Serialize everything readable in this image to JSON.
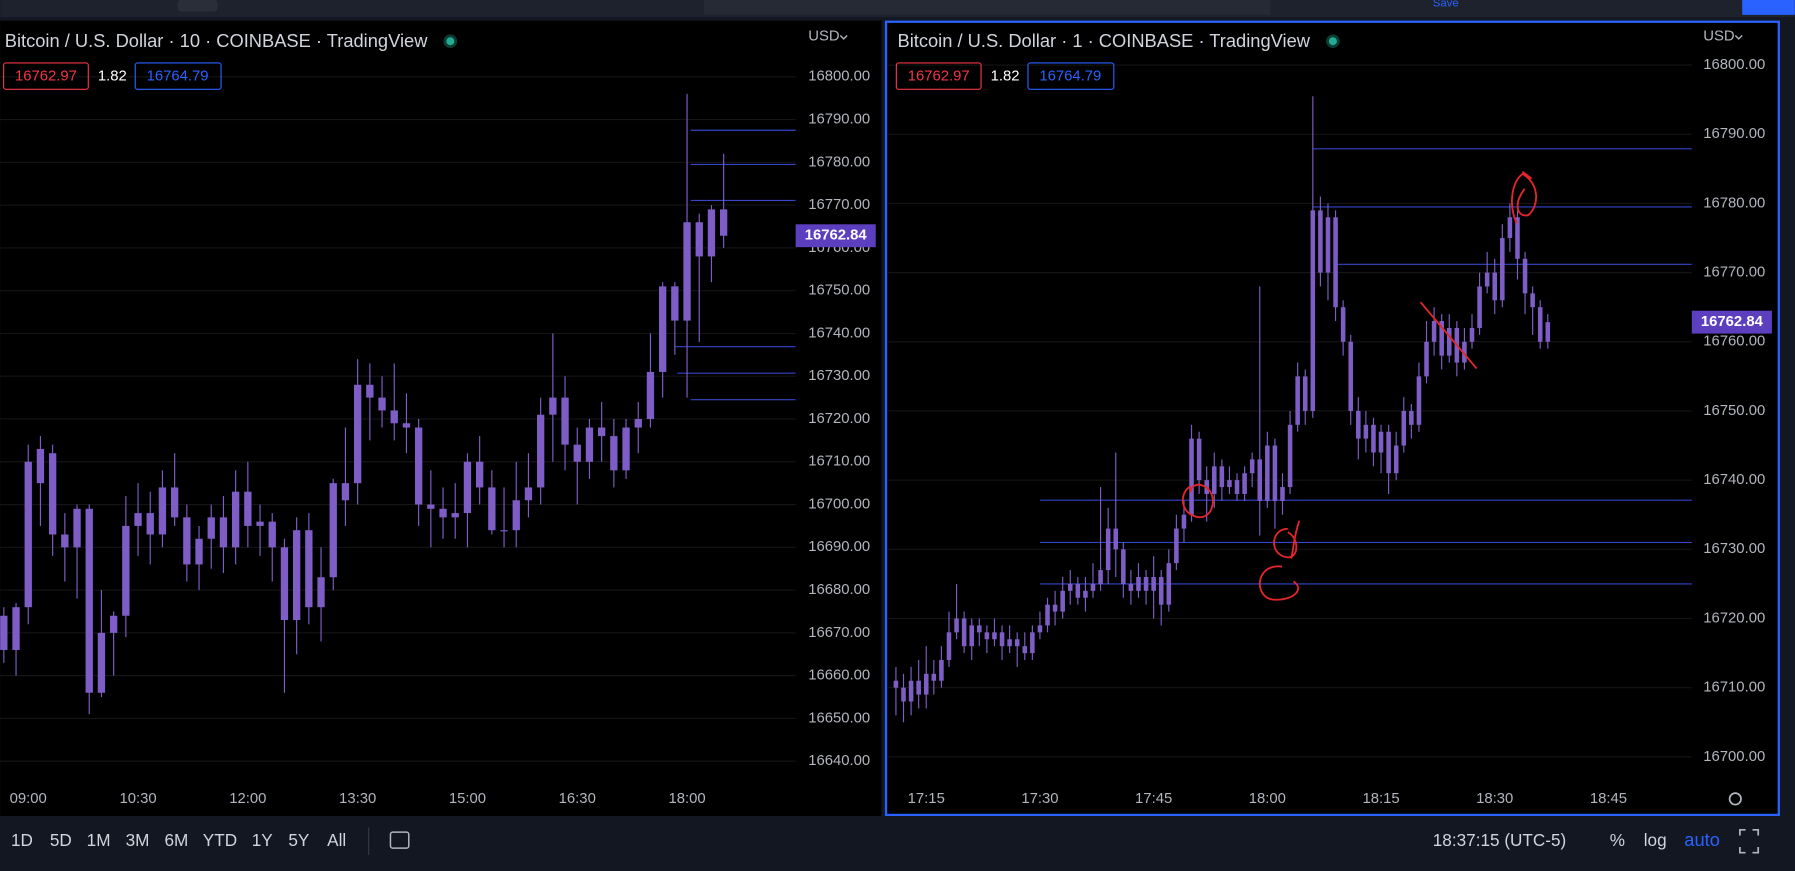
{
  "toolbar": {
    "save": "Save"
  },
  "chart_data": [
    {
      "type": "candlestick",
      "title": "Bitcoin / U.S. Dollar · 10 · COINBASE · TradingView",
      "currency": "USD",
      "bid": 16762.97,
      "spread": 1.82,
      "ask": 16764.79,
      "last_price": 16762.84,
      "color": "#7e5ec6",
      "level_color": "#3346c9",
      "grid": true,
      "x": [
        "08:40",
        "08:50",
        "09:00",
        "09:10",
        "09:20",
        "09:30",
        "09:40",
        "09:50",
        "10:00",
        "10:10",
        "10:20",
        "10:30",
        "10:40",
        "10:50",
        "11:00",
        "11:10",
        "11:20",
        "11:30",
        "11:40",
        "11:50",
        "12:00",
        "12:10",
        "12:20",
        "12:30",
        "12:40",
        "12:50",
        "13:00",
        "13:10",
        "13:20",
        "13:30",
        "13:40",
        "13:50",
        "14:00",
        "14:10",
        "14:20",
        "14:30",
        "14:40",
        "14:50",
        "15:00",
        "15:10",
        "15:20",
        "15:30",
        "15:40",
        "15:50",
        "16:00",
        "16:10",
        "16:20",
        "16:30",
        "16:40",
        "16:50",
        "17:00",
        "17:10",
        "17:20",
        "17:30",
        "17:40",
        "17:50",
        "18:00",
        "18:10",
        "18:20",
        "18:30"
      ],
      "open": [
        16674,
        16666,
        16676,
        16705,
        16712,
        16693,
        16690,
        16699,
        16656,
        16670,
        16674,
        16695,
        16698,
        16693,
        16704,
        16697,
        16686,
        16692,
        16697,
        16690,
        16703,
        16695,
        16696,
        16690,
        16673,
        16694,
        16676,
        16683,
        16701,
        16705,
        16728,
        16725,
        16722,
        16719,
        16718,
        16700,
        16699,
        16697,
        16698,
        16710,
        16704,
        16694,
        16694,
        16701,
        16704,
        16721,
        16725,
        16714,
        16710,
        16718,
        16716,
        16708,
        16718,
        16720,
        16731,
        16751,
        16743,
        16766,
        16758,
        16769
      ],
      "high": [
        16676,
        16677,
        16714,
        16716,
        16714,
        16698,
        16700,
        16700,
        16680,
        16675,
        16702,
        16705,
        16703,
        16708,
        16712,
        16700,
        16695,
        16700,
        16702,
        16708,
        16710,
        16700,
        16698,
        16692,
        16697,
        16698,
        16690,
        16706,
        16718,
        16734,
        16733,
        16730,
        16733,
        16726,
        16720,
        16708,
        16704,
        16705,
        16712,
        16716,
        16708,
        16704,
        16710,
        16712,
        16725,
        16740,
        16730,
        16718,
        16720,
        16724,
        16720,
        16720,
        16724,
        16740,
        16752,
        16752,
        16796,
        16768,
        16770,
        16782
      ],
      "low": [
        16663,
        16660,
        16672,
        16695,
        16688,
        16682,
        16678,
        16651,
        16655,
        16660,
        16669,
        16688,
        16686,
        16690,
        16695,
        16682,
        16680,
        16685,
        16684,
        16686,
        16690,
        16688,
        16682,
        16656,
        16665,
        16672,
        16668,
        16680,
        16695,
        16700,
        16715,
        16718,
        16715,
        16712,
        16695,
        16690,
        16692,
        16692,
        16690,
        16700,
        16693,
        16690,
        16690,
        16697,
        16700,
        16710,
        16708,
        16700,
        16706,
        16710,
        16704,
        16706,
        16712,
        16718,
        16725,
        16735,
        16725,
        16738,
        16752,
        16760
      ],
      "close": [
        16666,
        16676,
        16710,
        16713,
        16693,
        16690,
        16699,
        16656,
        16670,
        16674,
        16695,
        16698,
        16693,
        16704,
        16697,
        16686,
        16692,
        16697,
        16690,
        16703,
        16695,
        16696,
        16690,
        16673,
        16694,
        16676,
        16683,
        16705,
        16705,
        16728,
        16725,
        16722,
        16719,
        16718,
        16700,
        16699,
        16697,
        16698,
        16710,
        16704,
        16694,
        16694,
        16701,
        16704,
        16721,
        16725,
        16714,
        16710,
        16718,
        16716,
        16708,
        16718,
        16720,
        16731,
        16751,
        16743,
        16766,
        16758,
        16769,
        16762.84
      ],
      "xlim": [
        "08:37",
        "19:29"
      ],
      "xticks": [
        "09:00",
        "10:30",
        "12:00",
        "13:30",
        "15:00",
        "16:30",
        "18:00"
      ],
      "ylim": [
        16636,
        16812.6
      ],
      "yticks": [
        {
          "value": 16640,
          "label": "16640.00"
        },
        {
          "value": 16650,
          "label": "16650.00"
        },
        {
          "value": 16660,
          "label": "16660.00"
        },
        {
          "value": 16670,
          "label": "16670.00"
        },
        {
          "value": 16680,
          "label": "16680.00"
        },
        {
          "value": 16690,
          "label": "16690.00"
        },
        {
          "value": 16700,
          "label": "16700.00"
        },
        {
          "value": 16710,
          "label": "16710.00"
        },
        {
          "value": 16720,
          "label": "16720.00"
        },
        {
          "value": 16730,
          "label": "16730.00"
        },
        {
          "value": 16740,
          "label": "16740.00"
        },
        {
          "value": 16750,
          "label": "16750.00"
        },
        {
          "value": 16760,
          "label": "16760.00"
        },
        {
          "value": 16770,
          "label": "16770.00"
        },
        {
          "value": 16780,
          "label": "16780.00"
        },
        {
          "value": 16790,
          "label": "16790.00"
        },
        {
          "value": 16800,
          "label": "16800.00"
        }
      ],
      "levels": [
        {
          "price": 16787.5,
          "from": "18:03"
        },
        {
          "price": 16779.5,
          "from": "18:03"
        },
        {
          "price": 16771.1,
          "from": "18:03"
        },
        {
          "price": 16736.9,
          "from": "17:50"
        },
        {
          "price": 16730.7,
          "from": "17:52"
        },
        {
          "price": 16724.5,
          "from": "18:03"
        }
      ]
    },
    {
      "type": "candlestick",
      "title": "Bitcoin / U.S. Dollar · 1 · COINBASE · TradingView",
      "currency": "USD",
      "bid": 16762.97,
      "spread": 1.82,
      "ask": 16764.79,
      "last_price": 16762.84,
      "color": "#7e5ec6",
      "level_color": "#3346c9",
      "grid": true,
      "x": [
        "17:11",
        "17:12",
        "17:13",
        "17:14",
        "17:15",
        "17:16",
        "17:17",
        "17:18",
        "17:19",
        "17:20",
        "17:21",
        "17:22",
        "17:23",
        "17:24",
        "17:25",
        "17:26",
        "17:27",
        "17:28",
        "17:29",
        "17:30",
        "17:31",
        "17:32",
        "17:33",
        "17:34",
        "17:35",
        "17:36",
        "17:37",
        "17:38",
        "17:39",
        "17:40",
        "17:41",
        "17:42",
        "17:43",
        "17:44",
        "17:45",
        "17:46",
        "17:47",
        "17:48",
        "17:49",
        "17:50",
        "17:51",
        "17:52",
        "17:53",
        "17:54",
        "17:55",
        "17:56",
        "17:57",
        "17:58",
        "17:59",
        "18:00",
        "18:01",
        "18:02",
        "18:03",
        "18:04",
        "18:05",
        "18:06",
        "18:07",
        "18:08",
        "18:09",
        "18:10",
        "18:11",
        "18:12",
        "18:13",
        "18:14",
        "18:15",
        "18:16",
        "18:17",
        "18:18",
        "18:19",
        "18:20",
        "18:21",
        "18:22",
        "18:23",
        "18:24",
        "18:25",
        "18:26",
        "18:27",
        "18:28",
        "18:29",
        "18:30",
        "18:31",
        "18:32",
        "18:33",
        "18:34",
        "18:35",
        "18:36",
        "18:37"
      ],
      "open": [
        16711,
        16710,
        16708,
        16711,
        16709,
        16712,
        16711,
        16714,
        16718,
        16720,
        16716,
        16719,
        16718,
        16717,
        16718,
        16716,
        16717,
        16716,
        16715,
        16718,
        16719,
        16722,
        16721,
        16724,
        16725,
        16723,
        16724,
        16725,
        16727,
        16733,
        16730,
        16725,
        16724,
        16726,
        16724,
        16726,
        16722,
        16728,
        16733,
        16735,
        16746,
        16740,
        16738,
        16742,
        16739,
        16740,
        16738,
        16741,
        16743,
        16737,
        16745,
        16737,
        16739,
        16748,
        16755,
        16750,
        16779,
        16770,
        16778,
        16765,
        16760,
        16750,
        16746,
        16748,
        16744,
        16747,
        16741,
        16745,
        16750,
        16748,
        16755,
        16760,
        16763,
        16758,
        16762,
        16757,
        16760,
        16762,
        16768,
        16770,
        16766,
        16775,
        16778,
        16772,
        16767,
        16765,
        16760
      ],
      "high": [
        16713,
        16712,
        16713,
        16714,
        16716,
        16714,
        16716,
        16721,
        16725,
        16721,
        16720,
        16720,
        16719,
        16720,
        16719,
        16719,
        16718,
        16718,
        16719,
        16721,
        16723,
        16724,
        16726,
        16727,
        16726,
        16726,
        16728,
        16739,
        16736,
        16744,
        16731,
        16727,
        16728,
        16727,
        16729,
        16727,
        16730,
        16735,
        16737,
        16748,
        16747,
        16742,
        16744,
        16743,
        16742,
        16741,
        16742,
        16744,
        16768,
        16747,
        16746,
        16741,
        16750,
        16757,
        16756,
        16795.5,
        16781,
        16780,
        16779,
        16766,
        16761,
        16752,
        16750,
        16749,
        16748,
        16748,
        16747,
        16752,
        16751,
        16757,
        16763,
        16765,
        16764,
        16764,
        16763,
        16762,
        16764,
        16770,
        16773,
        16772,
        16777,
        16780,
        16779,
        16773,
        16768,
        16766,
        16764
      ],
      "low": [
        16706,
        16705,
        16706,
        16707,
        16707,
        16709,
        16710,
        16713,
        16717,
        16715,
        16714,
        16716,
        16715,
        16716,
        16714,
        16715,
        16713,
        16714,
        16714,
        16717,
        16718,
        16719,
        16720,
        16722,
        16722,
        16721,
        16723,
        16724,
        16725,
        16726,
        16723,
        16722,
        16723,
        16722,
        16720,
        16719,
        16721,
        16727,
        16731,
        16734,
        16738,
        16734,
        16736,
        16737,
        16738,
        16737,
        16737,
        16739,
        16732,
        16736,
        16733,
        16735,
        16738,
        16747,
        16748,
        16749,
        16768,
        16766,
        16763,
        16758,
        16748,
        16743,
        16744,
        16742,
        16741,
        16738,
        16740,
        16744,
        16746,
        16747,
        16754,
        16758,
        16756,
        16757,
        16755,
        16756,
        16759,
        16761,
        16767,
        16764,
        16765,
        16773,
        16769,
        16764,
        16761,
        16759,
        16759
      ],
      "close": [
        16710,
        16708,
        16711,
        16709,
        16712,
        16711,
        16714,
        16718,
        16720,
        16716,
        16719,
        16718,
        16717,
        16718,
        16716,
        16717,
        16716,
        16715,
        16718,
        16719,
        16722,
        16721,
        16724,
        16725,
        16723,
        16724,
        16725,
        16727,
        16733,
        16730,
        16725,
        16724,
        16726,
        16724,
        16726,
        16722,
        16728,
        16733,
        16735,
        16746,
        16740,
        16738,
        16742,
        16739,
        16740,
        16738,
        16741,
        16743,
        16737,
        16745,
        16737,
        16739,
        16748,
        16755,
        16750,
        16779,
        16770,
        16778,
        16765,
        16760,
        16750,
        16746,
        16748,
        16744,
        16747,
        16741,
        16745,
        16750,
        16748,
        16755,
        16760,
        16763,
        16758,
        16762,
        16757,
        16760,
        16762,
        16768,
        16770,
        16766,
        16775,
        16778,
        16772,
        16767,
        16765,
        16760,
        16762.84
      ],
      "xlim": [
        "17:10",
        "18:56"
      ],
      "xticks": [
        "17:15",
        "17:30",
        "17:45",
        "18:00",
        "18:15",
        "18:30",
        "18:45"
      ],
      "ylim": [
        16696.9,
        16806.1
      ],
      "yticks": [
        {
          "value": 16700,
          "label": "16700.00"
        },
        {
          "value": 16710,
          "label": "16710.00"
        },
        {
          "value": 16720,
          "label": "16720.00"
        },
        {
          "value": 16730,
          "label": "16730.00"
        },
        {
          "value": 16740,
          "label": "16740.00"
        },
        {
          "value": 16750,
          "label": "16750.00"
        },
        {
          "value": 16760,
          "label": "16760.00"
        },
        {
          "value": 16770,
          "label": "16770.00"
        },
        {
          "value": 16780,
          "label": "16780.00"
        },
        {
          "value": 16790,
          "label": "16790.00"
        },
        {
          "value": 16800,
          "label": "16800.00"
        }
      ],
      "levels": [
        {
          "price": 16787.9,
          "from": "18:06"
        },
        {
          "price": 16779.5,
          "from": "18:06"
        },
        {
          "price": 16771.2,
          "from": "18:09"
        },
        {
          "price": 16737.1,
          "from": "17:30"
        },
        {
          "price": 16731,
          "from": "17:30"
        },
        {
          "price": 16725,
          "from": "17:30"
        }
      ]
    }
  ],
  "footer": {
    "ranges": [
      "1D",
      "5D",
      "1M",
      "3M",
      "6M",
      "YTD",
      "1Y",
      "5Y",
      "All"
    ],
    "time": "18:37:15 (UTC-5)",
    "percent": "%",
    "log": "log",
    "auto": "auto"
  }
}
